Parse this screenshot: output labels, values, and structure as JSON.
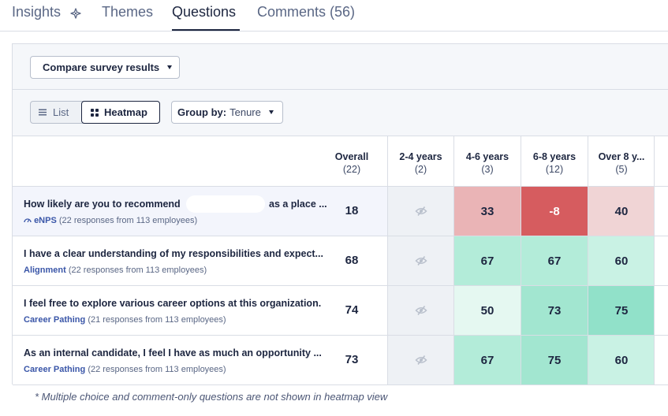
{
  "tabs": [
    {
      "label": "Insights",
      "active": false
    },
    {
      "label": "Themes",
      "active": false
    },
    {
      "label": "Questions",
      "active": true
    },
    {
      "label": "Comments (56)",
      "active": false
    }
  ],
  "toolbar": {
    "compare_label": "Compare survey results",
    "view_list_label": "List",
    "view_heatmap_label": "Heatmap",
    "view_selected": "Heatmap",
    "group_by_label": "Group by:",
    "group_by_value": "Tenure"
  },
  "columns": [
    {
      "label": "Overall",
      "count": "(22)"
    },
    {
      "label": "2-4 years",
      "count": "(2)"
    },
    {
      "label": "4-6 years",
      "count": "(3)"
    },
    {
      "label": "6-8 years",
      "count": "(12)"
    },
    {
      "label": "Over 8 y...",
      "count": "(5)"
    }
  ],
  "rows": [
    {
      "question": "How likely are you to recommend",
      "question_end": "as a place ...",
      "theme": "eNPS",
      "responses": "(22 responses from 113 employees)",
      "overall": "18",
      "cells": [
        {
          "value": "33",
          "color": "#eab4b6"
        },
        {
          "value": "-8",
          "color": "#d65c5f",
          "text_color": "#ffffff"
        },
        {
          "value": "40",
          "color": "#f0d4d5"
        }
      ]
    },
    {
      "question": "I have a clear understanding of my responsibilities and expect...",
      "theme": "Alignment",
      "responses": "(22 responses from 113 employees)",
      "overall": "68",
      "cells": [
        {
          "value": "67",
          "color": "#b3ecd9"
        },
        {
          "value": "67",
          "color": "#b3ecd9"
        },
        {
          "value": "60",
          "color": "#c9f2e4"
        }
      ]
    },
    {
      "question": "I feel free to explore various career options at this organization.",
      "theme": "Career Pathing",
      "responses": "(21 responses from 113 employees)",
      "overall": "74",
      "cells": [
        {
          "value": "50",
          "color": "#e5f8f1"
        },
        {
          "value": "73",
          "color": "#a2e6d0"
        },
        {
          "value": "75",
          "color": "#91e1c9"
        }
      ]
    },
    {
      "question": "As an internal candidate, I feel I have as much an opportunity ...",
      "theme": "Career Pathing",
      "responses": "(22 responses from 113 employees)",
      "overall": "73",
      "cells": [
        {
          "value": "67",
          "color": "#b3ecd9"
        },
        {
          "value": "75",
          "color": "#a2e6d0"
        },
        {
          "value": "60",
          "color": "#c9f2e4"
        }
      ]
    }
  ],
  "icons": {
    "insights": "sparkle-icon",
    "list": "list-icon",
    "heatmap": "grid-icon",
    "hidden_result": "eye-slash-icon",
    "enps": "gauge-icon"
  },
  "footnote": "* Multiple choice and comment-only questions are not shown in heatmap view"
}
